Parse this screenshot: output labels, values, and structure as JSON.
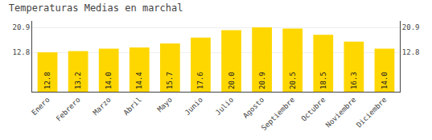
{
  "chart_data": {
    "type": "bar",
    "title": "Temperaturas Medias en marchal",
    "categories": [
      "Enero",
      "Febrero",
      "Marzo",
      "Abril",
      "Mayo",
      "Junio",
      "Julio",
      "Agosto",
      "Septiembre",
      "Octubre",
      "Noviembre",
      "Diciembre"
    ],
    "values": [
      12.8,
      13.2,
      14.0,
      14.4,
      15.7,
      17.6,
      20.0,
      20.9,
      20.5,
      18.5,
      16.3,
      14.0
    ],
    "value_labels": [
      "12.8",
      "13.2",
      "14.0",
      "14.4",
      "15.7",
      "17.6",
      "20.0",
      "20.9",
      "20.5",
      "18.5",
      "16.3",
      "14.0"
    ],
    "color": "#FFD700",
    "ylim": [
      0,
      23.0
    ],
    "yticks": [
      12.8,
      20.9
    ],
    "y2lim": [
      0,
      23.0
    ],
    "y2ticks": [
      12.8,
      20.9
    ],
    "grid": true,
    "data_labels": true
  }
}
